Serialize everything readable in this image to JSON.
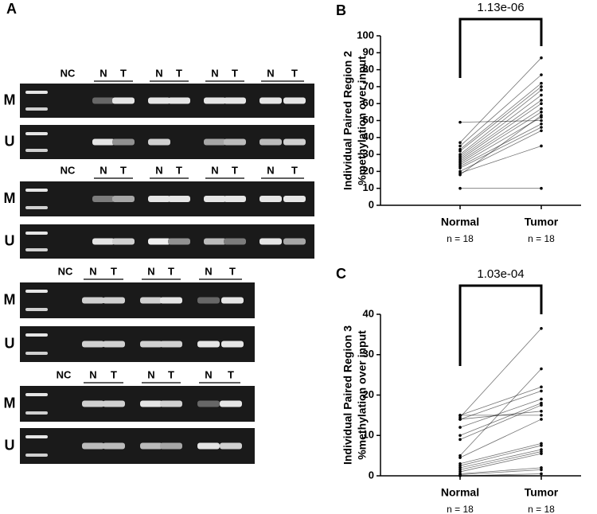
{
  "panel_a": {
    "label": "A",
    "blocks": [
      {
        "lanes": [
          "NC",
          "N",
          "T",
          "N",
          "T",
          "N",
          "T",
          "N",
          "T"
        ],
        "rows": [
          "M",
          "U"
        ]
      },
      {
        "lanes": [
          "NC",
          "N",
          "T",
          "N",
          "T",
          "N",
          "T",
          "N",
          "T"
        ],
        "rows": [
          "M",
          "U"
        ]
      },
      {
        "lanes": [
          "NC",
          "N",
          "T",
          "N",
          "T",
          "N",
          "T"
        ],
        "rows": [
          "M",
          "U"
        ]
      },
      {
        "lanes": [
          "NC",
          "N",
          "T",
          "N",
          "T",
          "N",
          "T"
        ],
        "rows": [
          "M",
          "U"
        ]
      }
    ]
  },
  "chart_data": [
    {
      "type": "paired-line",
      "panel_label": "B",
      "title": "1.13e-06",
      "y_label": [
        "Individual Paired Region 2",
        "%methylation over input"
      ],
      "categories": [
        "Normal",
        "Tumor"
      ],
      "category_notes": [
        "n = 18",
        "n = 18"
      ],
      "color": "#000000",
      "ylim": [
        0,
        100
      ],
      "yticks": [
        0,
        10,
        20,
        30,
        40,
        50,
        60,
        70,
        80,
        90,
        100
      ],
      "series": [
        {
          "values": [
            49,
            50
          ]
        },
        {
          "values": [
            37,
            87
          ]
        },
        {
          "values": [
            35,
            77
          ]
        },
        {
          "values": [
            33,
            72
          ]
        },
        {
          "values": [
            32,
            70
          ]
        },
        {
          "values": [
            30,
            68
          ]
        },
        {
          "values": [
            29,
            65
          ]
        },
        {
          "values": [
            28,
            62
          ]
        },
        {
          "values": [
            27,
            60
          ]
        },
        {
          "values": [
            26,
            57
          ]
        },
        {
          "values": [
            25,
            55
          ]
        },
        {
          "values": [
            24,
            52
          ]
        },
        {
          "values": [
            23,
            48
          ]
        },
        {
          "values": [
            22,
            46
          ]
        },
        {
          "values": [
            20,
            44
          ]
        },
        {
          "values": [
            19,
            35
          ]
        },
        {
          "values": [
            18,
            53
          ]
        },
        {
          "values": [
            10,
            10
          ]
        }
      ]
    },
    {
      "type": "paired-line",
      "panel_label": "C",
      "title": "1.03e-04",
      "y_label": [
        "Individual Paired Region 3",
        "%methylation over input"
      ],
      "categories": [
        "Normal",
        "Tumor"
      ],
      "category_notes": [
        "n = 18",
        "n = 18"
      ],
      "color": "#000000",
      "ylim": [
        0,
        40
      ],
      "yticks": [
        0,
        10,
        20,
        30,
        40
      ],
      "series": [
        {
          "values": [
            14.5,
            36.5
          ]
        },
        {
          "values": [
            5,
            26.5
          ]
        },
        {
          "values": [
            15,
            22
          ]
        },
        {
          "values": [
            14,
            21
          ]
        },
        {
          "values": [
            12,
            19
          ]
        },
        {
          "values": [
            10,
            18
          ]
        },
        {
          "values": [
            9,
            17.5
          ]
        },
        {
          "values": [
            14,
            16
          ]
        },
        {
          "values": [
            15,
            15
          ]
        },
        {
          "values": [
            4.5,
            14
          ]
        },
        {
          "values": [
            3,
            8
          ]
        },
        {
          "values": [
            2.5,
            7.5
          ]
        },
        {
          "values": [
            2,
            6.5
          ]
        },
        {
          "values": [
            1.5,
            6
          ]
        },
        {
          "values": [
            1,
            5.5
          ]
        },
        {
          "values": [
            0.5,
            2
          ]
        },
        {
          "values": [
            0.3,
            1.5
          ]
        },
        {
          "values": [
            0,
            0.5
          ]
        }
      ]
    }
  ]
}
